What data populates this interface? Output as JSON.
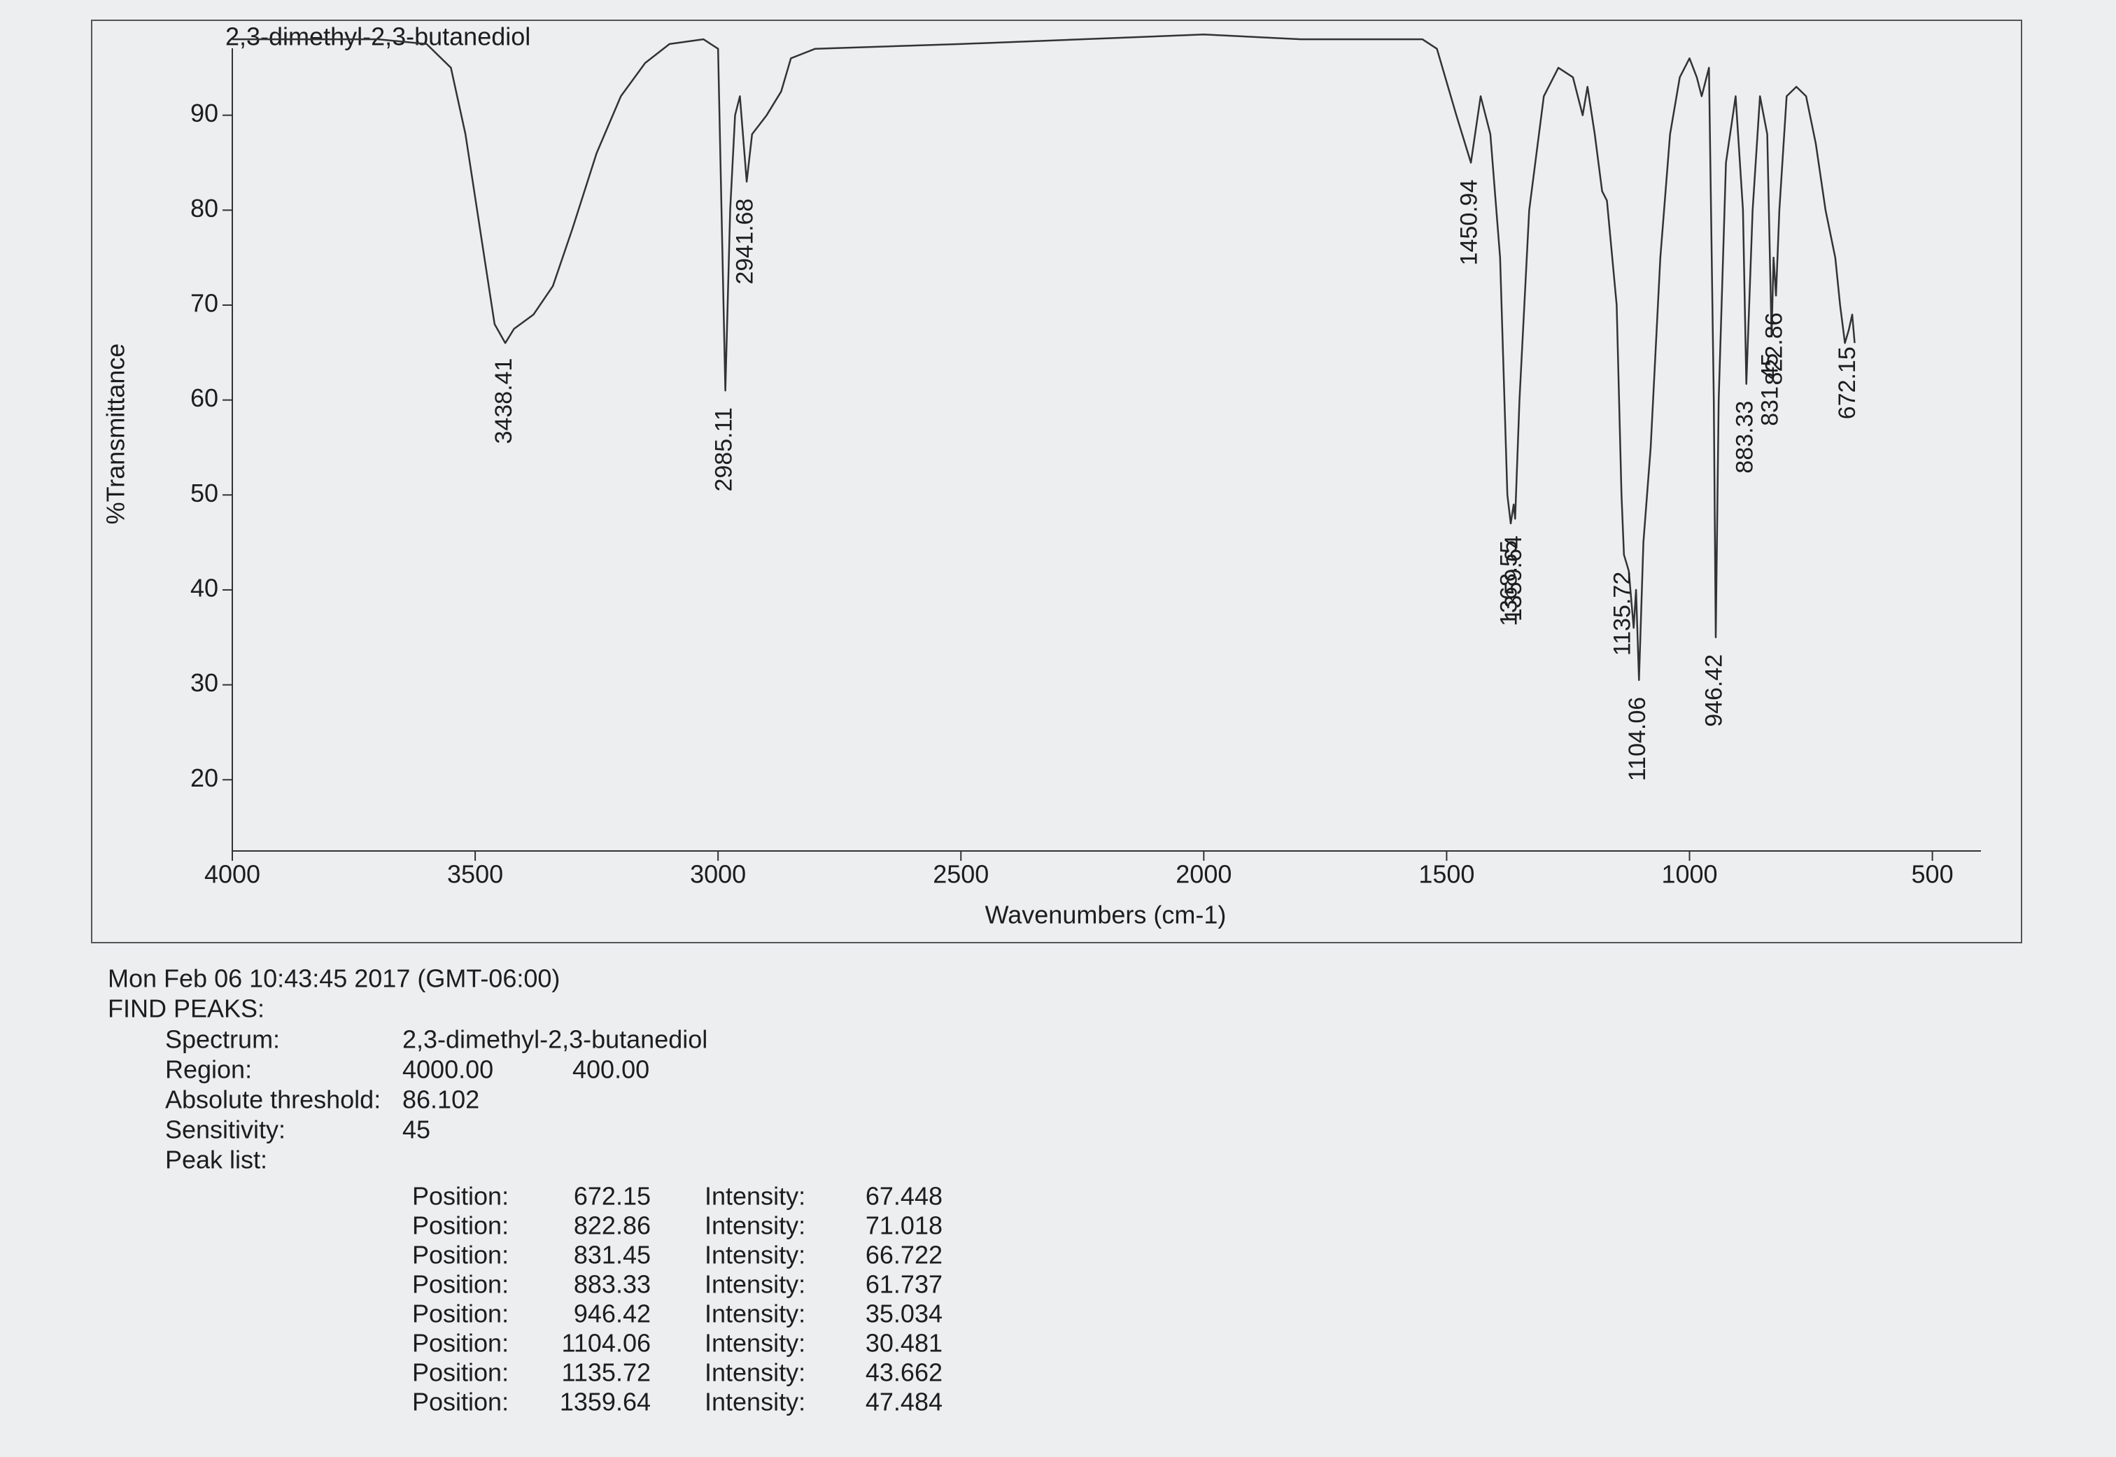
{
  "chart_data": {
    "type": "line",
    "title": "2,3-dimethyl-2,3-butanediol",
    "xlabel": "Wavenumbers (cm-1)",
    "ylabel": "%Transmittance",
    "color": "#333333",
    "xlim": [
      4000,
      400
    ],
    "ylim": [
      12.5,
      100
    ],
    "xticks": [
      4000,
      3500,
      3000,
      2500,
      2000,
      1500,
      1000,
      500
    ],
    "yticks": [
      20,
      30,
      40,
      50,
      60,
      70,
      80,
      90
    ],
    "x": [
      4000,
      3700,
      3600,
      3550,
      3520,
      3490,
      3460,
      3438,
      3420,
      3380,
      3340,
      3300,
      3250,
      3200,
      3150,
      3100,
      3030,
      3000,
      2985,
      2975,
      2965,
      2955,
      2941,
      2930,
      2900,
      2870,
      2850,
      2800,
      2500,
      2000,
      1800,
      1550,
      1520,
      1480,
      1450,
      1430,
      1410,
      1390,
      1375,
      1368,
      1362,
      1359,
      1350,
      1330,
      1300,
      1270,
      1240,
      1220,
      1210,
      1195,
      1180,
      1170,
      1150,
      1140,
      1135,
      1125,
      1115,
      1110,
      1104,
      1095,
      1080,
      1060,
      1040,
      1020,
      1000,
      985,
      975,
      960,
      950,
      946,
      940,
      925,
      905,
      890,
      883,
      870,
      855,
      840,
      831,
      827,
      822,
      815,
      800,
      780,
      760,
      740,
      720,
      700,
      690,
      680,
      672,
      665,
      660
    ],
    "values": [
      98,
      98,
      97.5,
      95,
      88,
      78,
      68,
      66,
      67.5,
      69,
      72,
      78,
      86,
      92,
      95.5,
      97.5,
      98,
      97,
      61,
      80,
      90,
      92,
      83,
      88,
      90,
      92.5,
      96,
      97,
      97.5,
      98.5,
      98,
      98,
      97,
      90,
      85,
      92,
      88,
      75,
      50,
      47,
      49,
      47.5,
      60,
      80,
      92,
      95,
      94,
      90,
      93,
      88,
      82,
      81,
      70,
      50,
      43.7,
      42,
      36,
      40,
      30.5,
      45,
      55,
      75,
      88,
      94,
      96,
      94,
      92,
      95,
      60,
      35,
      60,
      85,
      92,
      80,
      61.7,
      80,
      92,
      88,
      66.7,
      75,
      71,
      80,
      92,
      93,
      92,
      87,
      80,
      75,
      70,
      66,
      67.4,
      69,
      66
    ],
    "annotations": [
      {
        "x": 3438.41,
        "y": 66.2
      },
      {
        "x": 2985.11,
        "y": 61
      },
      {
        "x": 2941.68,
        "y": 83
      },
      {
        "x": 1450.94,
        "y": 85
      },
      {
        "x": 1368.55,
        "y": 47
      },
      {
        "x": 1359.64,
        "y": 47.5
      },
      {
        "x": 1135.72,
        "y": 43.7
      },
      {
        "x": 1104.06,
        "y": 30.5
      },
      {
        "x": 946.42,
        "y": 35
      },
      {
        "x": 883.33,
        "y": 61.7
      },
      {
        "x": 831.45,
        "y": 66.7
      },
      {
        "x": 822.86,
        "y": 71
      },
      {
        "x": 672.15,
        "y": 67.4
      }
    ]
  },
  "report": {
    "timestamp": "Mon Feb 06 10:43:45 2017 (GMT-06:00)",
    "heading": "FIND PEAKS:",
    "fields": [
      [
        "Spectrum:",
        "2,3-dimethyl-2,3-butanediol"
      ],
      [
        "Region:",
        "4000.00",
        "400.00"
      ],
      [
        "Absolute threshold:",
        "86.102"
      ],
      [
        "Sensitivity:",
        "45"
      ],
      [
        "Peak list:"
      ]
    ],
    "peaks": [
      [
        "Position:",
        "672.15",
        "Intensity:",
        "67.448"
      ],
      [
        "Position:",
        "822.86",
        "Intensity:",
        "71.018"
      ],
      [
        "Position:",
        "831.45",
        "Intensity:",
        "66.722"
      ],
      [
        "Position:",
        "883.33",
        "Intensity:",
        "61.737"
      ],
      [
        "Position:",
        "946.42",
        "Intensity:",
        "35.034"
      ],
      [
        "Position:",
        "1104.06",
        "Intensity:",
        "30.481"
      ],
      [
        "Position:",
        "1135.72",
        "Intensity:",
        "43.662"
      ],
      [
        "Position:",
        "1359.64",
        "Intensity:",
        "47.484"
      ]
    ]
  }
}
